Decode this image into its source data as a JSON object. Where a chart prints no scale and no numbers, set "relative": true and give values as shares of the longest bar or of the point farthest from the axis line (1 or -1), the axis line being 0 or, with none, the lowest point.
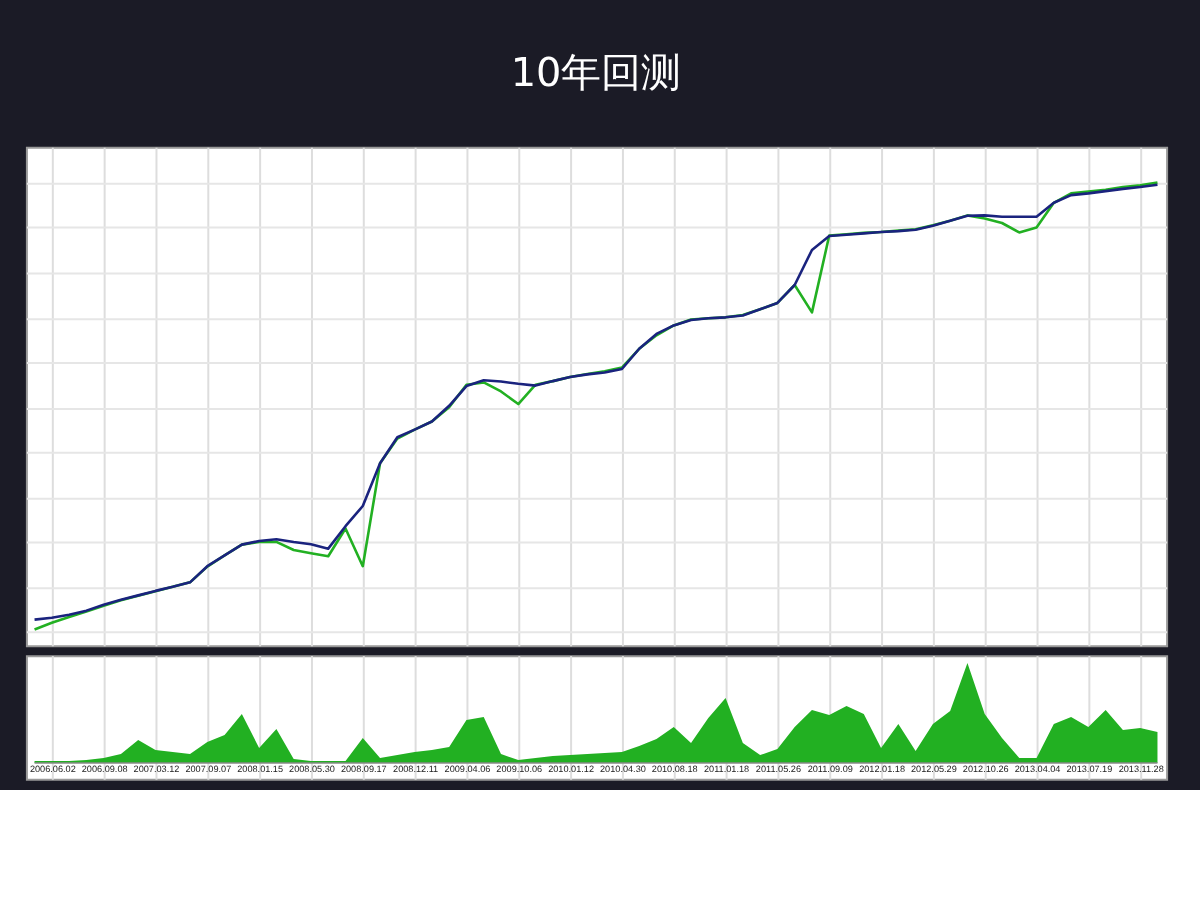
{
  "chart_data": [
    {
      "type": "line",
      "title": "10年回测",
      "relative": true,
      "categories": [
        null,
        "2006.06.02",
        null,
        null,
        "2006.09.08",
        null,
        null,
        "2007.03.12",
        null,
        null,
        "2007.09.07",
        null,
        null,
        "2008.01.15",
        null,
        null,
        "2008.05.30",
        null,
        null,
        "2008.09.17",
        null,
        null,
        "2008.12.11",
        null,
        null,
        "2009.04.06",
        null,
        null,
        "2009.10.06",
        null,
        null,
        "2010.01.12",
        null,
        null,
        "2010.04.30",
        null,
        null,
        "2010.08.18",
        null,
        null,
        "2011.01.18",
        null,
        null,
        "2011.05.26",
        null,
        null,
        "2011.09.09",
        null,
        null,
        "2012.01.18",
        null,
        null,
        "2012.05.29",
        null,
        null,
        "2012.10.26",
        null,
        null,
        "2013.04.04",
        null,
        null,
        "2013.07.19",
        null,
        null,
        "2013.11.28",
        null
      ],
      "tick_labels": false,
      "grid": true,
      "line_style": "solid",
      "series": [
        {
          "color": "#22b022",
          "values": [
            0.005,
            0.02,
            0.033,
            0.045,
            0.058,
            0.07,
            0.08,
            0.09,
            0.1,
            0.11,
            0.145,
            0.17,
            0.194,
            0.2,
            0.2,
            0.182,
            0.175,
            0.168,
            0.23,
            0.146,
            0.375,
            0.43,
            0.45,
            0.468,
            0.5,
            0.55,
            0.555,
            0.535,
            0.507,
            0.55,
            0.558,
            0.567,
            0.574,
            0.58,
            0.588,
            0.63,
            0.66,
            0.682,
            0.695,
            0.698,
            0.7,
            0.705,
            0.718,
            0.732,
            0.772,
            0.711,
            0.882,
            0.885,
            0.888,
            0.89,
            0.893,
            0.896,
            0.905,
            0.915,
            0.927,
            0.92,
            0.91,
            0.889,
            0.9,
            0.955,
            0.976,
            0.98,
            0.984,
            0.99,
            0.994,
            1.0
          ]
        },
        {
          "color": "#1a237e",
          "values": [
            0.027,
            0.031,
            0.038,
            0.047,
            0.06,
            0.071,
            0.081,
            0.091,
            0.1,
            0.11,
            0.146,
            0.17,
            0.194,
            0.202,
            0.206,
            0.2,
            0.195,
            0.185,
            0.235,
            0.28,
            0.375,
            0.433,
            0.45,
            0.468,
            0.503,
            0.547,
            0.56,
            0.557,
            0.552,
            0.548,
            0.558,
            0.567,
            0.573,
            0.577,
            0.585,
            0.63,
            0.663,
            0.682,
            0.694,
            0.698,
            0.7,
            0.704,
            0.718,
            0.732,
            0.772,
            0.85,
            0.881,
            0.884,
            0.887,
            0.89,
            0.892,
            0.895,
            0.904,
            0.915,
            0.926,
            0.927,
            0.924,
            0.924,
            0.924,
            0.955,
            0.972,
            0.976,
            0.981,
            0.986,
            0.99,
            0.995
          ]
        }
      ]
    },
    {
      "type": "area",
      "relative": true,
      "categories": [
        null,
        "2006.06.02",
        null,
        null,
        "2006.09.08",
        null,
        null,
        "2007.03.12",
        null,
        null,
        "2007.09.07",
        null,
        null,
        "2008.01.15",
        null,
        null,
        "2008.05.30",
        null,
        null,
        "2008.09.17",
        null,
        null,
        "2008.12.11",
        null,
        null,
        "2009.04.06",
        null,
        null,
        "2009.10.06",
        null,
        null,
        "2010.01.12",
        null,
        null,
        "2010.04.30",
        null,
        null,
        "2010.08.18",
        null,
        null,
        "2011.01.18",
        null,
        null,
        "2011.05.26",
        null,
        null,
        "2011.09.09",
        null,
        null,
        "2012.01.18",
        null,
        null,
        "2012.05.29",
        null,
        null,
        "2012.10.26",
        null,
        null,
        "2013.04.04",
        null,
        null,
        "2013.07.19",
        null,
        null,
        "2013.11.28",
        null
      ],
      "grid": "x",
      "series": [
        {
          "color": "#22b022",
          "values": [
            0.02,
            0.02,
            0.02,
            0.03,
            0.05,
            0.09,
            0.23,
            0.13,
            0.11,
            0.09,
            0.21,
            0.28,
            0.49,
            0.15,
            0.34,
            0.04,
            0.02,
            0.02,
            0.02,
            0.25,
            0.05,
            0.08,
            0.11,
            0.13,
            0.16,
            0.43,
            0.46,
            0.09,
            0.03,
            0.05,
            0.07,
            0.08,
            0.09,
            0.1,
            0.11,
            0.17,
            0.24,
            0.36,
            0.2,
            0.45,
            0.65,
            0.2,
            0.08,
            0.14,
            0.36,
            0.53,
            0.48,
            0.57,
            0.49,
            0.15,
            0.39,
            0.12,
            0.39,
            0.52,
            1.0,
            0.49,
            0.25,
            0.05,
            0.05,
            0.39,
            0.46,
            0.36,
            0.53,
            0.33,
            0.35,
            0.31
          ]
        }
      ]
    }
  ]
}
